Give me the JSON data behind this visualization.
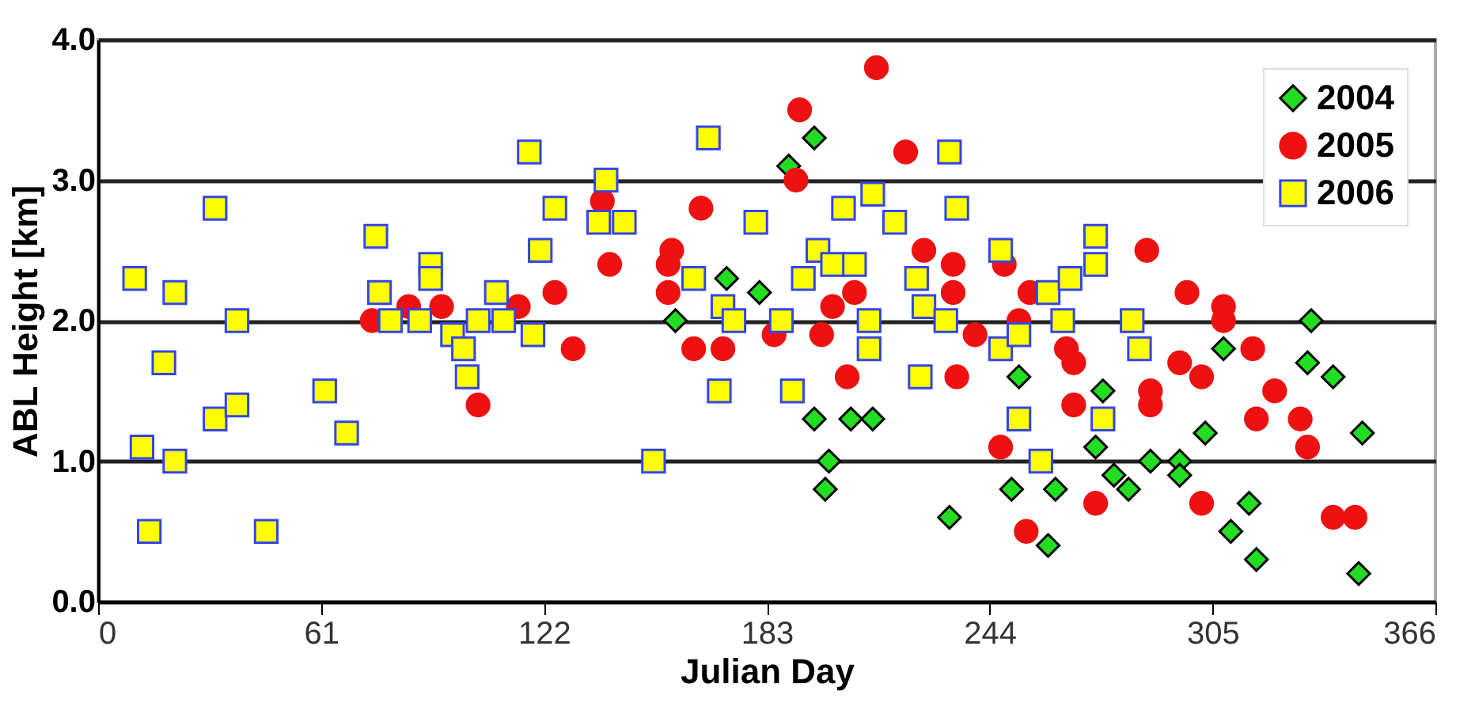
{
  "chart_data": {
    "type": "scatter",
    "xlabel": "Julian Day",
    "ylabel": "ABL Height [km]",
    "xlim": [
      0,
      366
    ],
    "xticks": [
      0,
      61,
      122,
      183,
      244,
      305,
      366
    ],
    "ylim": [
      0,
      4
    ],
    "yticks": [
      {
        "value": 0,
        "label": "0.0"
      },
      {
        "value": 1,
        "label": "1.0"
      },
      {
        "value": 2,
        "label": "2.0"
      },
      {
        "value": 3,
        "label": "3.0"
      },
      {
        "value": 4,
        "label": "4.0"
      }
    ],
    "grid": "y",
    "legend": "top right",
    "series": [
      {
        "name": "2004",
        "color": "#22dd22",
        "marker": "diamond",
        "x": [
          158,
          172,
          181,
          189,
          196,
          196,
          199,
          200,
          206,
          212,
          233,
          250,
          252,
          260,
          262,
          273,
          275,
          278,
          282,
          288,
          296,
          296,
          303,
          308,
          310,
          315,
          317,
          331,
          332,
          338,
          345,
          346
        ],
        "values": [
          2.0,
          2.3,
          2.2,
          3.1,
          3.3,
          1.3,
          0.8,
          1.0,
          1.3,
          1.3,
          0.6,
          0.8,
          1.6,
          0.4,
          0.8,
          1.1,
          1.5,
          0.9,
          0.8,
          1.0,
          1.0,
          0.9,
          1.2,
          1.8,
          0.5,
          0.7,
          0.3,
          1.7,
          2.0,
          1.6,
          0.2,
          1.2
        ]
      },
      {
        "name": "2005",
        "color": "#ee1111",
        "marker": "circle",
        "x": [
          75,
          85,
          94,
          104,
          115,
          125,
          130,
          138,
          140,
          156,
          156,
          157,
          163,
          165,
          171,
          185,
          191,
          192,
          198,
          201,
          205,
          207,
          213,
          221,
          226,
          234,
          234,
          235,
          240,
          247,
          248,
          252,
          254,
          255,
          265,
          267,
          267,
          273,
          287,
          288,
          288,
          296,
          298,
          302,
          302,
          308,
          308,
          316,
          317,
          322,
          329,
          331,
          338,
          344
        ],
        "values": [
          2.0,
          2.1,
          2.1,
          1.4,
          2.1,
          2.2,
          1.8,
          2.85,
          2.4,
          2.4,
          2.2,
          2.5,
          1.8,
          2.8,
          1.8,
          1.9,
          3.0,
          3.5,
          1.9,
          2.1,
          1.6,
          2.2,
          3.8,
          3.2,
          2.5,
          2.4,
          2.2,
          1.6,
          1.9,
          1.1,
          2.4,
          2.0,
          0.5,
          2.2,
          1.8,
          1.7,
          1.4,
          0.7,
          2.5,
          1.5,
          1.4,
          1.7,
          2.2,
          1.6,
          0.7,
          2.1,
          2.0,
          1.8,
          1.3,
          1.5,
          1.3,
          1.1,
          0.6,
          0.6
        ]
      },
      {
        "name": "2006",
        "color": "#ffff00",
        "marker": "square",
        "x": [
          10,
          12,
          14,
          18,
          21,
          21,
          32,
          32,
          38,
          38,
          46,
          62,
          68,
          76,
          77,
          80,
          88,
          91,
          91,
          97,
          100,
          101,
          104,
          109,
          111,
          118,
          119,
          121,
          125,
          137,
          139,
          144,
          152,
          163,
          167,
          170,
          171,
          174,
          180,
          187,
          190,
          193,
          197,
          201,
          204,
          207,
          211,
          211,
          212,
          218,
          224,
          225,
          226,
          232,
          233,
          235,
          247,
          247,
          252,
          252,
          258,
          260,
          264,
          266,
          273,
          273,
          275,
          283,
          285
        ],
        "values": [
          2.3,
          1.1,
          0.5,
          1.7,
          2.2,
          1.0,
          2.8,
          1.3,
          2.0,
          1.4,
          0.5,
          1.5,
          1.2,
          2.6,
          2.2,
          2.0,
          2.0,
          2.4,
          2.3,
          1.9,
          1.8,
          1.6,
          2.0,
          2.2,
          2.0,
          3.2,
          1.9,
          2.5,
          2.8,
          2.7,
          3.0,
          2.7,
          1.0,
          2.3,
          3.3,
          1.5,
          2.1,
          2.0,
          2.7,
          2.0,
          1.5,
          2.3,
          2.5,
          2.4,
          2.8,
          2.4,
          2.0,
          1.8,
          2.9,
          2.7,
          2.3,
          1.6,
          2.1,
          2.0,
          3.2,
          2.8,
          2.5,
          1.8,
          1.9,
          1.3,
          1.0,
          2.2,
          2.0,
          2.3,
          2.6,
          2.4,
          1.3,
          2.0,
          1.8
        ]
      }
    ]
  }
}
